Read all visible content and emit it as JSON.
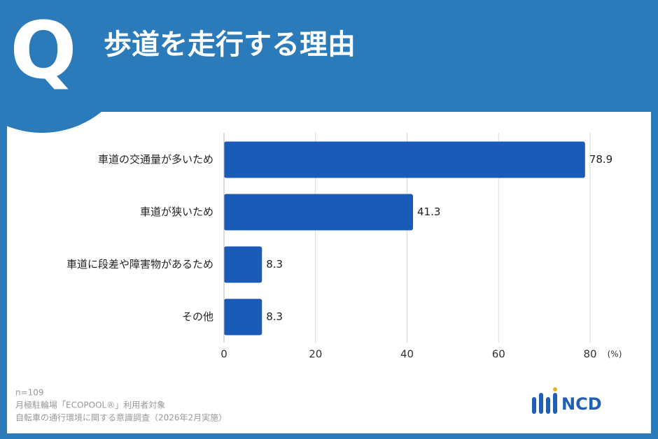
{
  "header": {
    "badge": "Q"
  },
  "chart_data": {
    "type": "bar",
    "orientation": "horizontal",
    "title": "歩道を走行する理由",
    "categories": [
      "車道の交通量が多いため",
      "車道が狭いため",
      "車道に段差や障害物があるため",
      "その他"
    ],
    "values": [
      78.9,
      41.3,
      8.3,
      8.3
    ],
    "color": "#1a5bb8",
    "xlim": [
      0,
      80
    ],
    "xticks": [
      0,
      20,
      40,
      60,
      80
    ],
    "x_unit": "(%)",
    "grid": true
  },
  "footer": {
    "notes": [
      "n=109",
      "月極駐輪場「ECOPOOL®」利用者対象",
      "自転車の通行環境に関する意識調査（2026年2月実施）"
    ],
    "logo": "NCD"
  }
}
